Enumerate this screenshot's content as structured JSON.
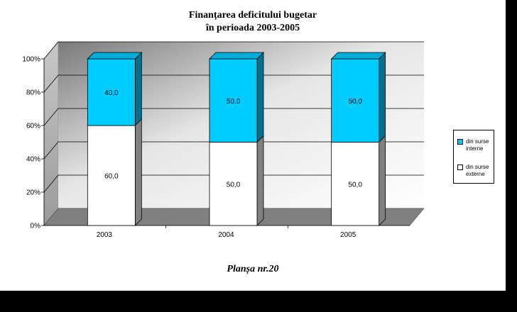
{
  "chart_data": {
    "type": "bar",
    "stacked": true,
    "percent": true,
    "title": "Finanțarea deficitului bugetar",
    "subtitle": "în perioada 2003-2005",
    "categories": [
      "2003",
      "2004",
      "2005"
    ],
    "series": [
      {
        "name": "din surse externe",
        "values": [
          60.0,
          50.0,
          50.0
        ],
        "labels": [
          "60,0",
          "50,0",
          "50,0"
        ],
        "color": "#ffffff"
      },
      {
        "name": "din surse interne",
        "values": [
          40.0,
          50.0,
          50.0
        ],
        "labels": [
          "40,0",
          "50,0",
          "50,0"
        ],
        "color": "#00ccff"
      }
    ],
    "y_ticks": [
      "0%",
      "20%",
      "40%",
      "60%",
      "80%",
      "100%"
    ],
    "ylim": [
      0,
      100
    ],
    "grid": true,
    "legend": "right",
    "three_d": true
  },
  "caption": "Planșa nr.20"
}
